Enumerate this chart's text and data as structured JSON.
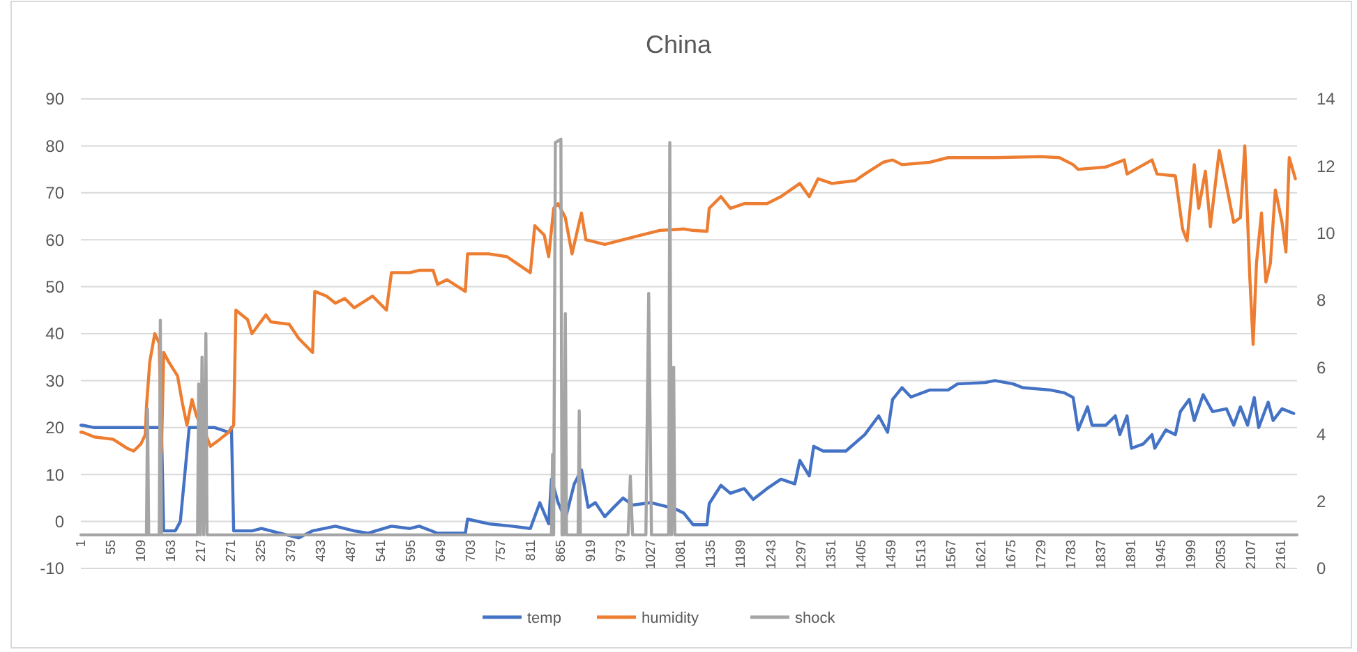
{
  "chart_data": {
    "type": "line",
    "title": "China",
    "xlim": [
      1,
      2190
    ],
    "xticks": [
      1,
      55,
      109,
      163,
      217,
      271,
      325,
      379,
      433,
      487,
      541,
      595,
      649,
      703,
      757,
      811,
      865,
      919,
      973,
      1027,
      1081,
      1135,
      1189,
      1243,
      1297,
      1351,
      1405,
      1459,
      1513,
      1567,
      1621,
      1675,
      1729,
      1783,
      1837,
      1891,
      1945,
      1999,
      2053,
      2107,
      2161
    ],
    "ylim": [
      -10,
      90
    ],
    "yticks": [
      -10,
      0,
      10,
      20,
      30,
      40,
      50,
      60,
      70,
      80,
      90
    ],
    "y2lim": [
      0,
      14
    ],
    "y2ticks": [
      0,
      2,
      4,
      6,
      8,
      10,
      12,
      14
    ],
    "grid": "y",
    "legend": "bottom",
    "marker": "none",
    "line_style": "solid",
    "series": [
      {
        "name": "temp",
        "color": "#4472c4",
        "x": [
          1,
          4,
          25,
          142,
          146,
          150,
          171,
          180,
          188,
          196,
          242,
          267,
          272,
          276,
          309,
          326,
          359,
          393,
          418,
          459,
          493,
          518,
          560,
          593,
          610,
          643,
          693,
          697,
          735,
          777,
          810,
          827,
          843,
          848,
          860,
          873,
          889,
          902,
          914,
          927,
          944,
          960,
          977,
          994,
          1027,
          1061,
          1069,
          1086,
          1103,
          1128,
          1132,
          1153,
          1170,
          1195,
          1211,
          1236,
          1261,
          1286,
          1295,
          1312,
          1320,
          1337,
          1378,
          1412,
          1437,
          1453,
          1462,
          1479,
          1495,
          1529,
          1562,
          1579,
          1629,
          1646,
          1679,
          1696,
          1746,
          1771,
          1787,
          1796,
          1813,
          1821,
          1846,
          1863,
          1871,
          1884,
          1892,
          1913,
          1929,
          1934,
          1954,
          1971,
          1980,
          1996,
          2005,
          2021,
          2038,
          2063,
          2076,
          2088,
          2101,
          2113,
          2121,
          2138,
          2147,
          2163,
          2184
        ],
        "values": [
          20.5,
          20.5,
          20,
          20,
          20,
          -2,
          -2,
          0,
          10,
          20,
          20,
          19,
          20,
          -2,
          -2,
          -1.5,
          -2.5,
          -3.5,
          -2,
          -1,
          -2,
          -2.5,
          -1,
          -1.5,
          -1,
          -2.5,
          -2.5,
          0.5,
          -0.5,
          -1,
          -1.5,
          4,
          -0.5,
          9,
          4,
          0.5,
          8,
          11,
          3,
          4,
          1,
          3,
          5,
          3.5,
          4,
          3,
          2.8,
          1.8,
          -0.7,
          -0.7,
          3.8,
          7.7,
          6,
          7,
          4.7,
          7,
          9,
          8,
          13,
          9.7,
          16,
          15,
          15,
          18.5,
          22.5,
          19,
          26,
          28.5,
          26.5,
          28,
          28,
          29.3,
          29.6,
          30,
          29.3,
          28.5,
          28,
          27.4,
          26.4,
          19.5,
          24.4,
          20.5,
          20.5,
          22.5,
          18.5,
          22.5,
          15.6,
          16.5,
          18.5,
          15.6,
          19.5,
          18.5,
          23.4,
          26,
          21.5,
          27,
          23.4,
          24,
          20.5,
          24.4,
          20.5,
          26.4,
          20,
          25.4,
          21.5,
          24,
          23
        ]
      },
      {
        "name": "humidity",
        "color": "#ed7d31",
        "x": [
          1,
          4,
          25,
          59,
          84,
          96,
          109,
          117,
          119,
          125,
          134,
          142,
          146,
          150,
          159,
          175,
          184,
          192,
          201,
          209,
          226,
          234,
          251,
          267,
          276,
          280,
          301,
          309,
          334,
          343,
          376,
          393,
          418,
          422,
          443,
          459,
          476,
          493,
          526,
          551,
          560,
          593,
          610,
          635,
          643,
          660,
          693,
          697,
          735,
          768,
          785,
          810,
          818,
          835,
          843,
          852,
          860,
          873,
          885,
          898,
          902,
          910,
          944,
          977,
          1010,
          1044,
          1086,
          1102,
          1128,
          1132,
          1153,
          1170,
          1195,
          1236,
          1261,
          1295,
          1312,
          1328,
          1353,
          1395,
          1412,
          1445,
          1462,
          1479,
          1529,
          1562,
          1646,
          1729,
          1762,
          1787,
          1796,
          1846,
          1879,
          1884,
          1929,
          1938,
          1971,
          1984,
          1992,
          2005,
          2013,
          2025,
          2034,
          2050,
          2063,
          2076,
          2088,
          2096,
          2105,
          2111,
          2117,
          2126,
          2134,
          2142,
          2151,
          2163,
          2170,
          2176,
          2187
        ],
        "values": [
          19,
          19,
          18,
          17.5,
          15.6,
          15,
          16.5,
          18.5,
          24.4,
          34,
          40,
          38,
          14.5,
          36,
          34,
          31,
          25,
          20.5,
          26,
          22.5,
          18.5,
          16,
          17.5,
          19,
          20.5,
          45,
          43,
          40,
          44,
          42.5,
          42,
          39,
          36,
          49,
          48,
          46.5,
          47.5,
          45.5,
          48,
          45,
          53,
          53,
          53.5,
          53.5,
          50.5,
          51.5,
          49,
          57,
          57,
          56.4,
          55,
          53,
          63,
          61,
          56.4,
          66.7,
          67.7,
          64.7,
          57,
          63.7,
          65.7,
          60,
          59,
          60,
          61,
          62,
          62.3,
          62,
          61.8,
          66.7,
          69.2,
          66.7,
          67.7,
          67.7,
          69.2,
          72,
          69.2,
          73,
          72,
          72.6,
          74,
          76.5,
          77,
          76,
          76.5,
          77.5,
          77.5,
          77.7,
          77.5,
          76,
          75,
          75.5,
          77,
          74,
          77,
          74,
          73.6,
          62.3,
          59.8,
          76,
          66.7,
          74.6,
          62.8,
          79,
          71.6,
          63.7,
          64.7,
          80,
          52,
          37.7,
          55,
          65.7,
          51,
          55,
          70.6,
          63.7,
          57.4,
          77.5,
          73
        ]
      },
      {
        "name": "shock",
        "color": "#a5a5a5",
        "axis": "y2",
        "x": [
          1,
          119,
          121,
          123,
          142,
          144,
          146,
          211,
          213,
          216,
          219,
          222,
          226,
          228,
          848,
          850,
          852,
          855,
          865,
          867,
          870,
          873,
          875,
          896,
          898,
          900,
          986,
          990,
          994,
          1018,
          1023,
          1028,
          1059,
          1061,
          1064,
          1068,
          1070,
          2190
        ],
        "values": [
          1,
          1,
          4.75,
          1,
          1,
          7.4,
          1,
          1,
          5.5,
          1,
          6.3,
          1,
          7,
          1,
          1,
          3.4,
          1,
          12.7,
          12.8,
          1,
          1,
          7.6,
          1,
          1,
          4.7,
          1,
          1,
          2.75,
          1,
          1,
          8.2,
          1,
          1,
          12.7,
          1,
          6,
          1,
          1
        ]
      }
    ]
  }
}
